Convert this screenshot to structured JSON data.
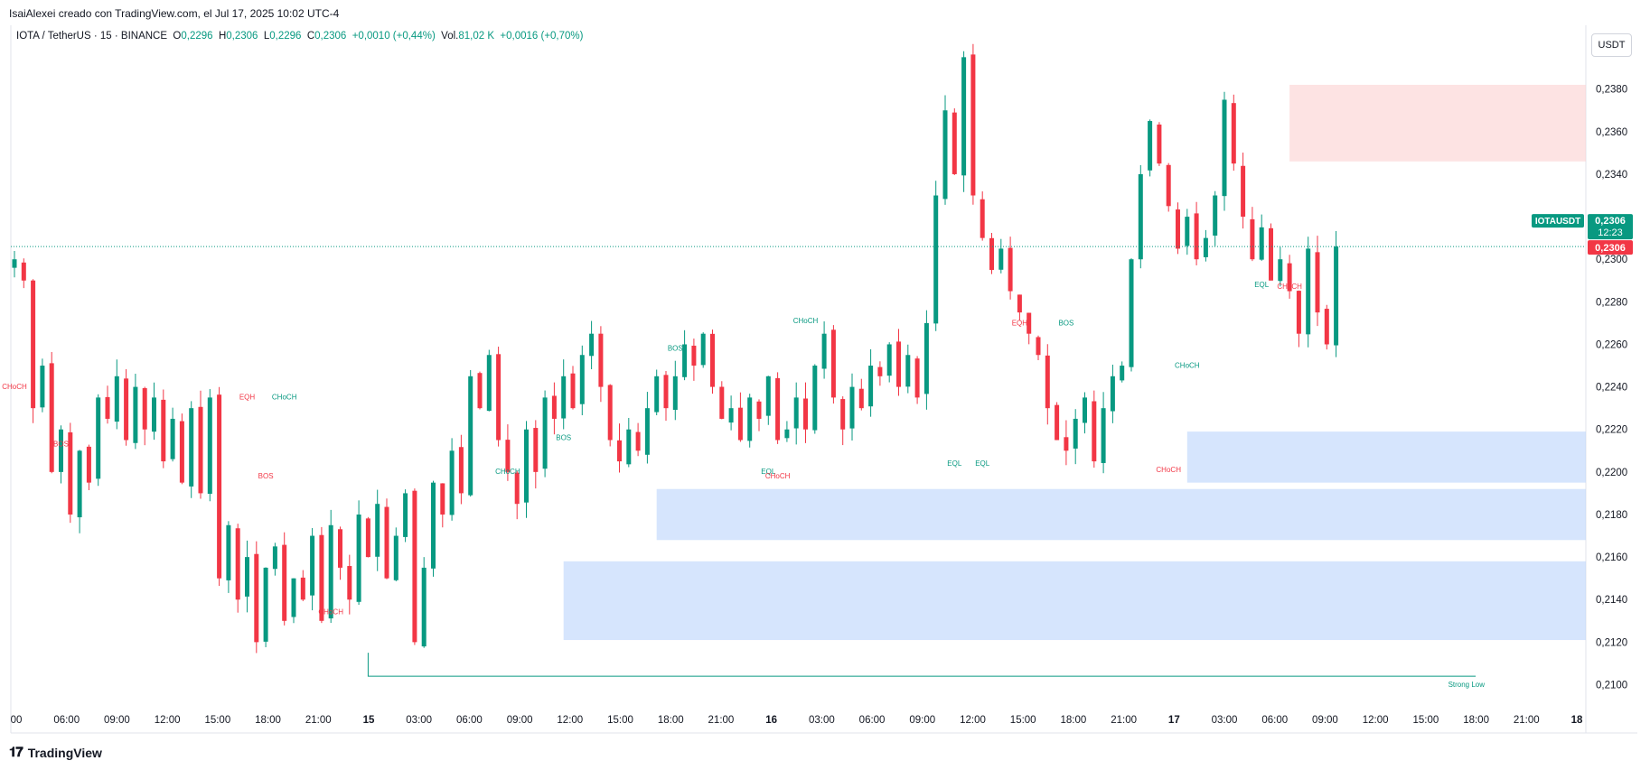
{
  "attribution": "IsaiAlexei creado con TradingView.com, el Jul 17, 2025 10:02 UTC-4",
  "header": {
    "symbol": "IOTA / TetherUS · 15 · BINANCE",
    "o_label": "O",
    "o_value": "0,2296",
    "h_label": "H",
    "h_value": "0,2306",
    "l_label": "L",
    "l_value": "0,2296",
    "c_label": "C",
    "c_value": "0,2306",
    "change": "+0,0010 (+0,44%)",
    "vol_label": "Vol.",
    "vol_value": "81,02 K",
    "vol_change": "+0,0016 (+0,70%)"
  },
  "currency_button": "USDT",
  "price_tag": {
    "symbol": "IOTAUSDT",
    "price": "0,2306",
    "countdown": "12:23",
    "price2": "0,2306"
  },
  "footer_logo": "TradingView",
  "colors": {
    "up": "#089981",
    "down": "#f23645",
    "demand_zone": "#bbd4fb",
    "supply_zone": "#fbd0d0",
    "grid_text": "#131722"
  },
  "chart_data": {
    "type": "candlestick",
    "ylim": [
      0.2093,
      0.241
    ],
    "y_ticks": [
      {
        "value": 0.21,
        "label": "0,2100"
      },
      {
        "value": 0.212,
        "label": "0,2120"
      },
      {
        "value": 0.214,
        "label": "0,2140"
      },
      {
        "value": 0.216,
        "label": "0,2160"
      },
      {
        "value": 0.218,
        "label": "0,2180"
      },
      {
        "value": 0.22,
        "label": "0,2200"
      },
      {
        "value": 0.222,
        "label": "0,2220"
      },
      {
        "value": 0.224,
        "label": "0,2240"
      },
      {
        "value": 0.226,
        "label": "0,2260"
      },
      {
        "value": 0.228,
        "label": "0,2280"
      },
      {
        "value": 0.23,
        "label": "0,2300"
      },
      {
        "value": 0.234,
        "label": "0,2340"
      },
      {
        "value": 0.236,
        "label": "0,2360"
      },
      {
        "value": 0.238,
        "label": "0,2380"
      }
    ],
    "x_ticks": [
      "00",
      "06:00",
      "09:00",
      "12:00",
      "15:00",
      "18:00",
      "21:00",
      "15",
      "03:00",
      "06:00",
      "09:00",
      "12:00",
      "15:00",
      "18:00",
      "21:00",
      "16",
      "03:00",
      "06:00",
      "09:00",
      "12:00",
      "15:00",
      "18:00",
      "21:00",
      "17",
      "03:00",
      "06:00",
      "09:00",
      "12:00",
      "15:00",
      "18:00",
      "21:00",
      "18"
    ],
    "bold_ticks": [
      "15",
      "16",
      "17",
      "18"
    ],
    "last_price": 0.2306,
    "path": [
      0.23,
      0.229,
      0.223,
      0.225,
      0.22,
      0.222,
      0.218,
      0.221,
      0.2195,
      0.2235,
      0.2225,
      0.2245,
      0.2215,
      0.224,
      0.222,
      0.2235,
      0.2205,
      0.2225,
      0.2195,
      0.223,
      0.219,
      0.2235,
      0.215,
      0.2175,
      0.214,
      0.216,
      0.212,
      0.2155,
      0.2165,
      0.213,
      0.215,
      0.214,
      0.217,
      0.213,
      0.2175,
      0.2155,
      0.214,
      0.218,
      0.216,
      0.2185,
      0.215,
      0.217,
      0.219,
      0.212,
      0.2155,
      0.2195,
      0.218,
      0.221,
      0.219,
      0.2245,
      0.223,
      0.2255,
      0.2215,
      0.22,
      0.2185,
      0.222,
      0.22,
      0.2235,
      0.2225,
      0.2245,
      0.223,
      0.2255,
      0.2265,
      0.224,
      0.2215,
      0.2205,
      0.222,
      0.221,
      0.223,
      0.2245,
      0.223,
      0.2245,
      0.226,
      0.225,
      0.2265,
      0.224,
      0.2225,
      0.223,
      0.2215,
      0.2235,
      0.2225,
      0.2245,
      0.2215,
      0.222,
      0.2235,
      0.222,
      0.225,
      0.2265,
      0.2235,
      0.222,
      0.224,
      0.223,
      0.225,
      0.2245,
      0.226,
      0.224,
      0.2255,
      0.2235,
      0.227,
      0.233,
      0.237,
      0.234,
      0.2395,
      0.233,
      0.231,
      0.2295,
      0.2305,
      0.2285,
      0.2275,
      0.2265,
      0.2255,
      0.223,
      0.2215,
      0.221,
      0.2225,
      0.2235,
      0.2205,
      0.223,
      0.2245,
      0.225,
      0.23,
      0.234,
      0.2365,
      0.2345,
      0.2325,
      0.2305,
      0.232,
      0.23,
      0.231,
      0.233,
      0.2375,
      0.2345,
      0.232,
      0.23,
      0.2315,
      0.229,
      0.23,
      0.2285,
      0.2265,
      0.2305,
      0.2275,
      0.226,
      0.2306
    ],
    "zones": [
      {
        "kind": "supply",
        "top": 0.2382,
        "bottom": 0.2346,
        "from_index": 137
      },
      {
        "kind": "demand",
        "top": 0.2219,
        "bottom": 0.2195,
        "from_index": 126
      },
      {
        "kind": "demand",
        "top": 0.2192,
        "bottom": 0.2168,
        "from_index": 69
      },
      {
        "kind": "demand",
        "top": 0.2158,
        "bottom": 0.2121,
        "from_index": 59
      }
    ],
    "annotations": [
      {
        "text": "CHoCH",
        "color": "down",
        "x_index": 0,
        "price": 0.2239
      },
      {
        "text": "BOS",
        "color": "down",
        "x_index": 5,
        "price": 0.2212
      },
      {
        "text": "EQH",
        "color": "down",
        "x_index": 25,
        "price": 0.2234
      },
      {
        "text": "CHoCH",
        "color": "up",
        "x_index": 29,
        "price": 0.2234
      },
      {
        "text": "BOS",
        "color": "down",
        "x_index": 27,
        "price": 0.2197
      },
      {
        "text": "CHoCH",
        "color": "down",
        "x_index": 34,
        "price": 0.2133
      },
      {
        "text": "CHoCH",
        "color": "up",
        "x_index": 53,
        "price": 0.2199
      },
      {
        "text": "BOS",
        "color": "up",
        "x_index": 59,
        "price": 0.2215
      },
      {
        "text": "BOS",
        "color": "up",
        "x_index": 71,
        "price": 0.2257
      },
      {
        "text": "CHoCH",
        "color": "up",
        "x_index": 85,
        "price": 0.227
      },
      {
        "text": "EQL",
        "color": "up",
        "x_index": 81,
        "price": 0.2199
      },
      {
        "text": "CHoCH",
        "color": "down",
        "x_index": 82,
        "price": 0.2197
      },
      {
        "text": "EQH",
        "color": "down",
        "x_index": 108,
        "price": 0.2269
      },
      {
        "text": "BOS",
        "color": "up",
        "x_index": 113,
        "price": 0.2269
      },
      {
        "text": "EQL",
        "color": "up",
        "x_index": 101,
        "price": 0.2203
      },
      {
        "text": "EQL",
        "color": "up",
        "x_index": 104,
        "price": 0.2203
      },
      {
        "text": "CHoCH",
        "color": "up",
        "x_index": 126,
        "price": 0.2249
      },
      {
        "text": "CHoCH",
        "color": "down",
        "x_index": 124,
        "price": 0.22
      },
      {
        "text": "EQL",
        "color": "up",
        "x_index": 134,
        "price": 0.2287
      },
      {
        "text": "CHoCH",
        "color": "down",
        "x_index": 137,
        "price": 0.2286
      },
      {
        "text": "Strong Low",
        "color": "up",
        "x_index": 156,
        "price": 0.2099
      }
    ],
    "strong_low": {
      "price": 0.2104,
      "from_index": 38,
      "to_index": 157
    }
  }
}
